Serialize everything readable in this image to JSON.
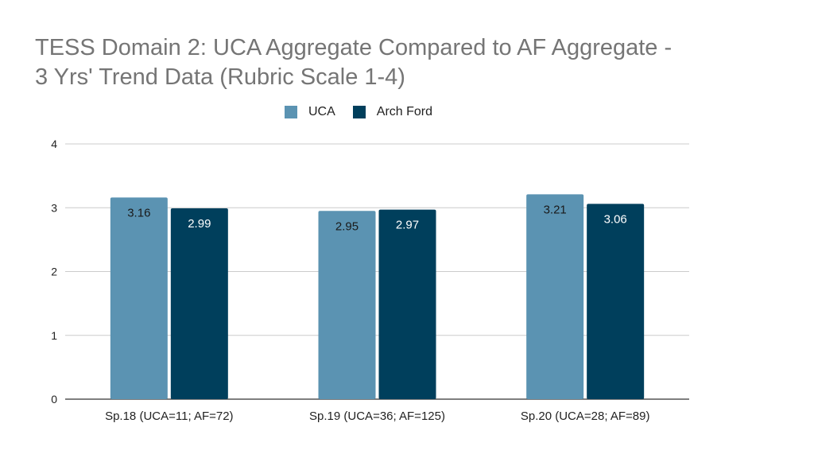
{
  "chart_data": {
    "type": "bar",
    "title_lines": [
      "TESS Domain 2: UCA Aggregate Compared to AF Aggregate -",
      "3 Yrs' Trend Data (Rubric Scale 1-4)"
    ],
    "categories": [
      "Sp.18 (UCA=11; AF=72)",
      "Sp.19 (UCA=36; AF=125)",
      "Sp.20 (UCA=28; AF=89)"
    ],
    "series": [
      {
        "name": "UCA",
        "values": [
          3.16,
          2.95,
          3.21
        ],
        "color": "#5b93b2",
        "label_color": "#1a1a1a"
      },
      {
        "name": "Arch Ford",
        "values": [
          2.99,
          2.97,
          3.06
        ],
        "color": "#003f5c",
        "label_color": "#ffffff"
      }
    ],
    "ylim": [
      0,
      4
    ],
    "yticks": [
      "0",
      "1",
      "2",
      "3",
      "4"
    ],
    "grid": true,
    "legend": "top-center"
  }
}
